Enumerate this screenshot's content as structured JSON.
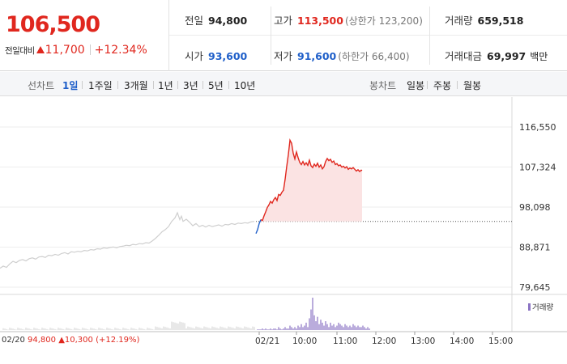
{
  "quote": {
    "price": "106,500",
    "change_label": "전일대비",
    "change_amount": "11,700",
    "change_rate": "+12.34%",
    "prev_close": {
      "label": "전일",
      "value": "94,800"
    },
    "open": {
      "label": "시가",
      "value": "93,600"
    },
    "high": {
      "label": "고가",
      "value": "113,500",
      "sub": "(상한가 123,200)"
    },
    "low": {
      "label": "저가",
      "value": "91,600",
      "sub": "(하한가 66,400)"
    },
    "volume": {
      "label": "거래량",
      "value": "659,518"
    },
    "amount": {
      "label": "거래대금",
      "value": "69,997",
      "unit": "백만"
    }
  },
  "tabs": {
    "line_label": "선차트",
    "line_items": [
      "1일",
      "1주일",
      "3개월",
      "1년",
      "3년",
      "5년",
      "10년"
    ],
    "active": "1일",
    "candle_label": "봉차트",
    "candle_items": [
      "일봉",
      "주봉",
      "월봉"
    ]
  },
  "colors": {
    "up": "#e0271e",
    "down": "#1f5fc9",
    "prev_day_line": "#cfcfcf",
    "volume": "#8b74c4",
    "fill": "#fbe3e3"
  },
  "chart_data": {
    "type": "line",
    "title": "",
    "ylabel": "",
    "xlabel": "",
    "y_ticks": [
      "116,550",
      "107,324",
      "98,098",
      "88,871",
      "79,645"
    ],
    "y_tick_values": [
      116550,
      107324,
      98098,
      88871,
      79645
    ],
    "ylim": [
      79645,
      116550
    ],
    "x_ticks": [
      "02/20",
      "02/21",
      "10:00",
      "11:00",
      "12:00",
      "13:00",
      "14:00",
      "15:00"
    ],
    "reference_line": 94800,
    "grid": true,
    "series": [
      {
        "points": [
          [
            0,
            84000
          ],
          [
            4,
            84500
          ],
          [
            8,
            84200
          ],
          [
            12,
            85000
          ],
          [
            16,
            85600
          ],
          [
            20,
            85300
          ],
          [
            24,
            85800
          ],
          [
            28,
            86000
          ],
          [
            32,
            85700
          ],
          [
            36,
            86200
          ],
          [
            40,
            86400
          ],
          [
            44,
            86100
          ],
          [
            48,
            86600
          ],
          [
            52,
            86700
          ],
          [
            56,
            86500
          ],
          [
            60,
            87000
          ],
          [
            64,
            86900
          ],
          [
            68,
            87200
          ],
          [
            72,
            87000
          ],
          [
            76,
            87400
          ],
          [
            80,
            87600
          ],
          [
            84,
            87300
          ],
          [
            88,
            87800
          ],
          [
            92,
            87700
          ],
          [
            96,
            87900
          ],
          [
            100,
            87800
          ],
          [
            104,
            88100
          ],
          [
            108,
            88000
          ],
          [
            112,
            88300
          ],
          [
            116,
            88200
          ],
          [
            120,
            88500
          ],
          [
            124,
            88400
          ],
          [
            128,
            88700
          ],
          [
            132,
            88600
          ],
          [
            136,
            88800
          ],
          [
            140,
            88900
          ],
          [
            144,
            88700
          ],
          [
            148,
            89000
          ],
          [
            152,
            89100
          ],
          [
            156,
            89300
          ],
          [
            160,
            89200
          ],
          [
            164,
            89500
          ],
          [
            168,
            89400
          ],
          [
            172,
            89700
          ],
          [
            176,
            89600
          ],
          [
            180,
            89900
          ],
          [
            184,
            89800
          ],
          [
            188,
            90300
          ],
          [
            192,
            90900
          ],
          [
            196,
            91600
          ],
          [
            200,
            92400
          ],
          [
            204,
            92900
          ],
          [
            208,
            93600
          ],
          [
            212,
            94800
          ],
          [
            216,
            95600
          ],
          [
            219,
            96800
          ],
          [
            222,
            95200
          ],
          [
            224,
            96000
          ],
          [
            226,
            94800
          ],
          [
            230,
            95300
          ],
          [
            234,
            94600
          ],
          [
            238,
            93800
          ],
          [
            242,
            94300
          ],
          [
            246,
            93600
          ],
          [
            250,
            93900
          ],
          [
            254,
            93500
          ],
          [
            258,
            93900
          ],
          [
            262,
            93600
          ],
          [
            266,
            93800
          ],
          [
            270,
            94000
          ],
          [
            274,
            93700
          ],
          [
            278,
            94100
          ],
          [
            282,
            94000
          ],
          [
            286,
            94300
          ],
          [
            290,
            94100
          ],
          [
            294,
            94400
          ],
          [
            298,
            94300
          ],
          [
            302,
            94500
          ],
          [
            306,
            94400
          ],
          [
            310,
            94700
          ],
          [
            314,
            94800
          ]
        ]
      },
      {
        "points": [
          [
            316,
            92000
          ],
          [
            318,
            92900
          ],
          [
            320,
            94300
          ],
          [
            322,
            95200
          ],
          [
            324,
            95000
          ],
          [
            326,
            96100
          ],
          [
            328,
            97000
          ],
          [
            330,
            98000
          ],
          [
            332,
            98600
          ],
          [
            334,
            99400
          ],
          [
            336,
            99000
          ],
          [
            338,
            99800
          ],
          [
            340,
            100300
          ],
          [
            342,
            99600
          ],
          [
            344,
            101000
          ],
          [
            346,
            100800
          ],
          [
            348,
            101500
          ],
          [
            350,
            102000
          ],
          [
            352,
            104500
          ],
          [
            354,
            107500
          ],
          [
            356,
            110200
          ],
          [
            358,
            113500
          ],
          [
            360,
            112800
          ],
          [
            362,
            110500
          ],
          [
            364,
            109200
          ],
          [
            366,
            110800
          ],
          [
            368,
            109500
          ],
          [
            370,
            108400
          ],
          [
            372,
            107900
          ],
          [
            374,
            108600
          ],
          [
            376,
            107800
          ],
          [
            378,
            108300
          ],
          [
            380,
            107700
          ],
          [
            382,
            108900
          ],
          [
            384,
            107600
          ],
          [
            386,
            107200
          ],
          [
            388,
            108000
          ],
          [
            390,
            107500
          ],
          [
            392,
            108200
          ],
          [
            394,
            107300
          ],
          [
            396,
            107800
          ],
          [
            398,
            106900
          ],
          [
            400,
            107400
          ],
          [
            402,
            108600
          ],
          [
            404,
            109300
          ],
          [
            406,
            108800
          ],
          [
            408,
            109100
          ],
          [
            410,
            108400
          ],
          [
            412,
            108700
          ],
          [
            414,
            107900
          ],
          [
            416,
            108100
          ],
          [
            418,
            107600
          ],
          [
            420,
            107800
          ],
          [
            422,
            107300
          ],
          [
            424,
            107500
          ],
          [
            426,
            107100
          ],
          [
            428,
            107400
          ],
          [
            430,
            106800
          ],
          [
            432,
            107100
          ],
          [
            434,
            106900
          ],
          [
            436,
            107200
          ],
          [
            438,
            106800
          ],
          [
            440,
            106400
          ],
          [
            442,
            106700
          ],
          [
            444,
            106300
          ],
          [
            446,
            106600
          ],
          [
            447,
            106500
          ]
        ]
      }
    ],
    "volume": [
      0,
      0,
      0,
      1,
      0,
      1,
      0,
      0,
      1,
      0,
      1,
      1,
      0,
      2,
      1,
      0,
      1,
      2,
      1,
      1,
      3,
      2,
      1,
      2,
      1,
      3,
      2,
      4,
      2,
      3,
      5,
      2,
      8,
      14,
      22,
      10,
      6,
      9,
      4,
      7,
      5,
      3,
      6,
      4,
      2,
      5,
      3,
      4,
      2,
      3,
      5,
      4,
      3,
      2,
      4,
      3,
      2,
      3,
      2,
      4,
      3,
      2,
      3,
      2,
      2,
      3,
      2,
      1,
      2,
      1
    ]
  }
}
